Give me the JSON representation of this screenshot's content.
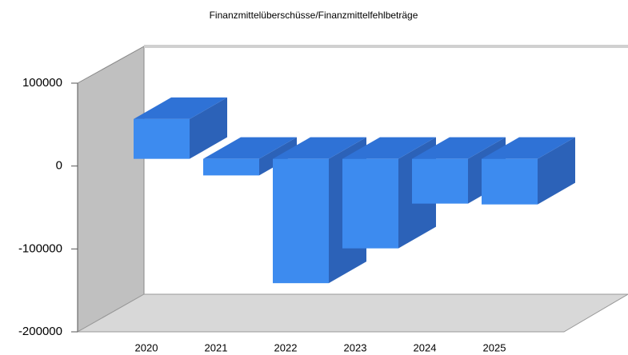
{
  "chart_data": {
    "type": "bar3d",
    "title": "Finanzmittelüberschüsse/Finanzmittelfehlbeträge",
    "categories": [
      "2020",
      "2021",
      "2022",
      "2023",
      "2024",
      "2025"
    ],
    "values": [
      48000,
      -20000,
      -150000,
      -108000,
      -54000,
      -55000
    ],
    "color": "#3d8bef",
    "ylim": [
      -200000,
      100000
    ],
    "yticks": [
      -200000,
      -100000,
      0,
      100000
    ]
  }
}
